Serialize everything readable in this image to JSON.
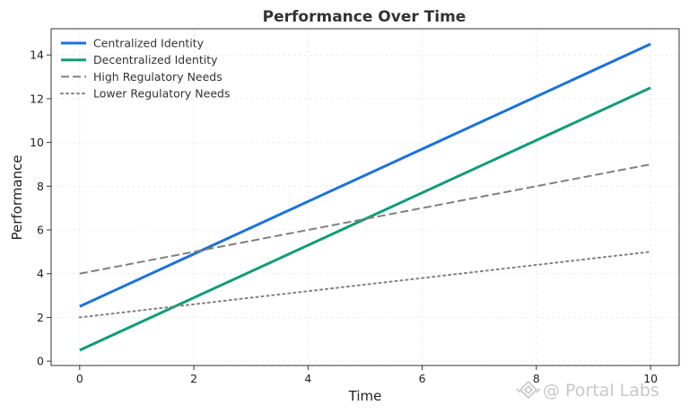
{
  "chart_data": {
    "type": "line",
    "title": "Performance Over Time",
    "xlabel": "Time",
    "ylabel": "Performance",
    "xlim": [
      -0.5,
      10.5
    ],
    "ylim": [
      -0.2,
      15.2
    ],
    "xticks": [
      0,
      2,
      4,
      6,
      8,
      10
    ],
    "yticks": [
      0,
      2,
      4,
      6,
      8,
      10,
      12,
      14
    ],
    "grid": true,
    "legend_position": "top-left",
    "x": [
      0,
      10
    ],
    "series": [
      {
        "name": "Centralized Identity",
        "values": [
          2.5,
          14.5
        ],
        "color": "#1a73d9",
        "style": "solid"
      },
      {
        "name": "Decentralized Identity",
        "values": [
          0.5,
          12.5
        ],
        "color": "#129c7a",
        "style": "solid"
      },
      {
        "name": "High Regulatory Needs",
        "values": [
          4,
          9
        ],
        "color": "#808080",
        "style": "dashed"
      },
      {
        "name": "Lower Regulatory Needs",
        "values": [
          2,
          5
        ],
        "color": "#808080",
        "style": "dotted"
      }
    ]
  },
  "watermark": {
    "text": "@ Portal Labs",
    "icon": "diamond-logo-icon"
  }
}
